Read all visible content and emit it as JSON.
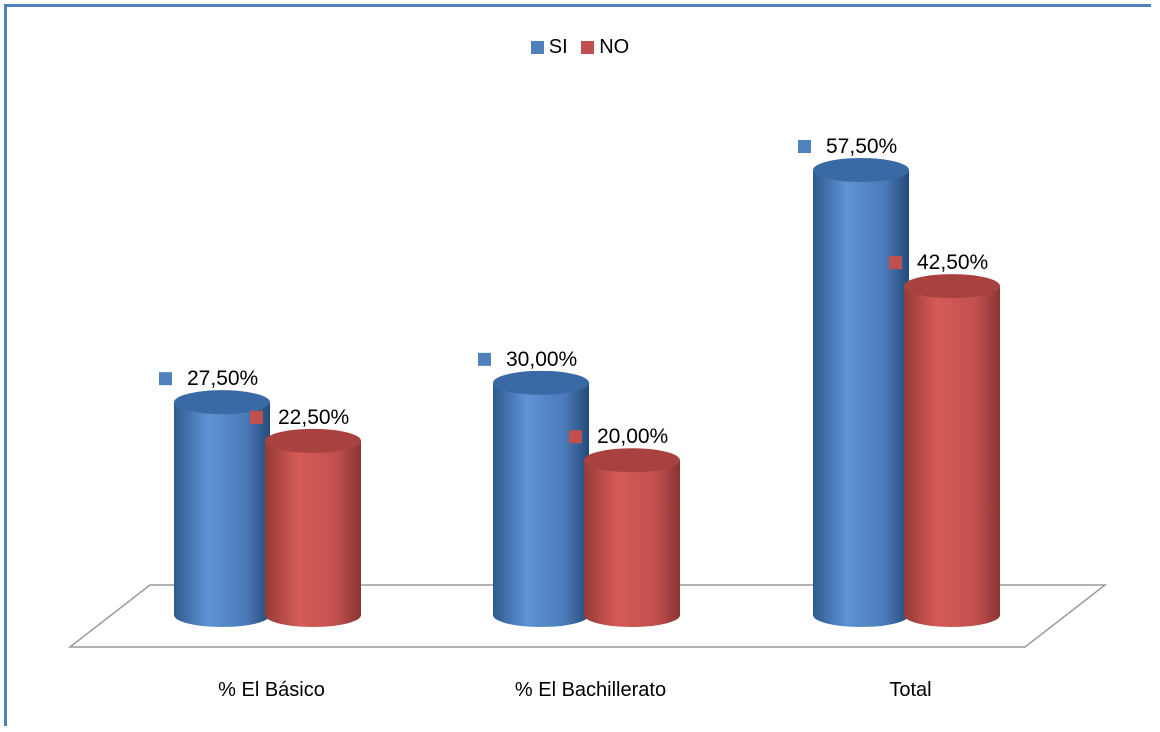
{
  "chart_data": {
    "type": "bar",
    "style": "3d-cylinder",
    "categories": [
      "% El Básico",
      "% El Bachillerato",
      "Total"
    ],
    "series": [
      {
        "name": "SI",
        "color": "#4f81bd",
        "values": [
          27.5,
          30.0,
          57.5
        ],
        "labels": [
          "27,50%",
          "30,00%",
          "57,50%"
        ]
      },
      {
        "name": "NO",
        "color": "#c0504d",
        "values": [
          22.5,
          20.0,
          42.5
        ],
        "labels": [
          "22,50%",
          "20,00%",
          "42,50%"
        ]
      }
    ],
    "ylim": [
      0,
      57.5
    ],
    "legend_position": "top",
    "grid": false
  }
}
